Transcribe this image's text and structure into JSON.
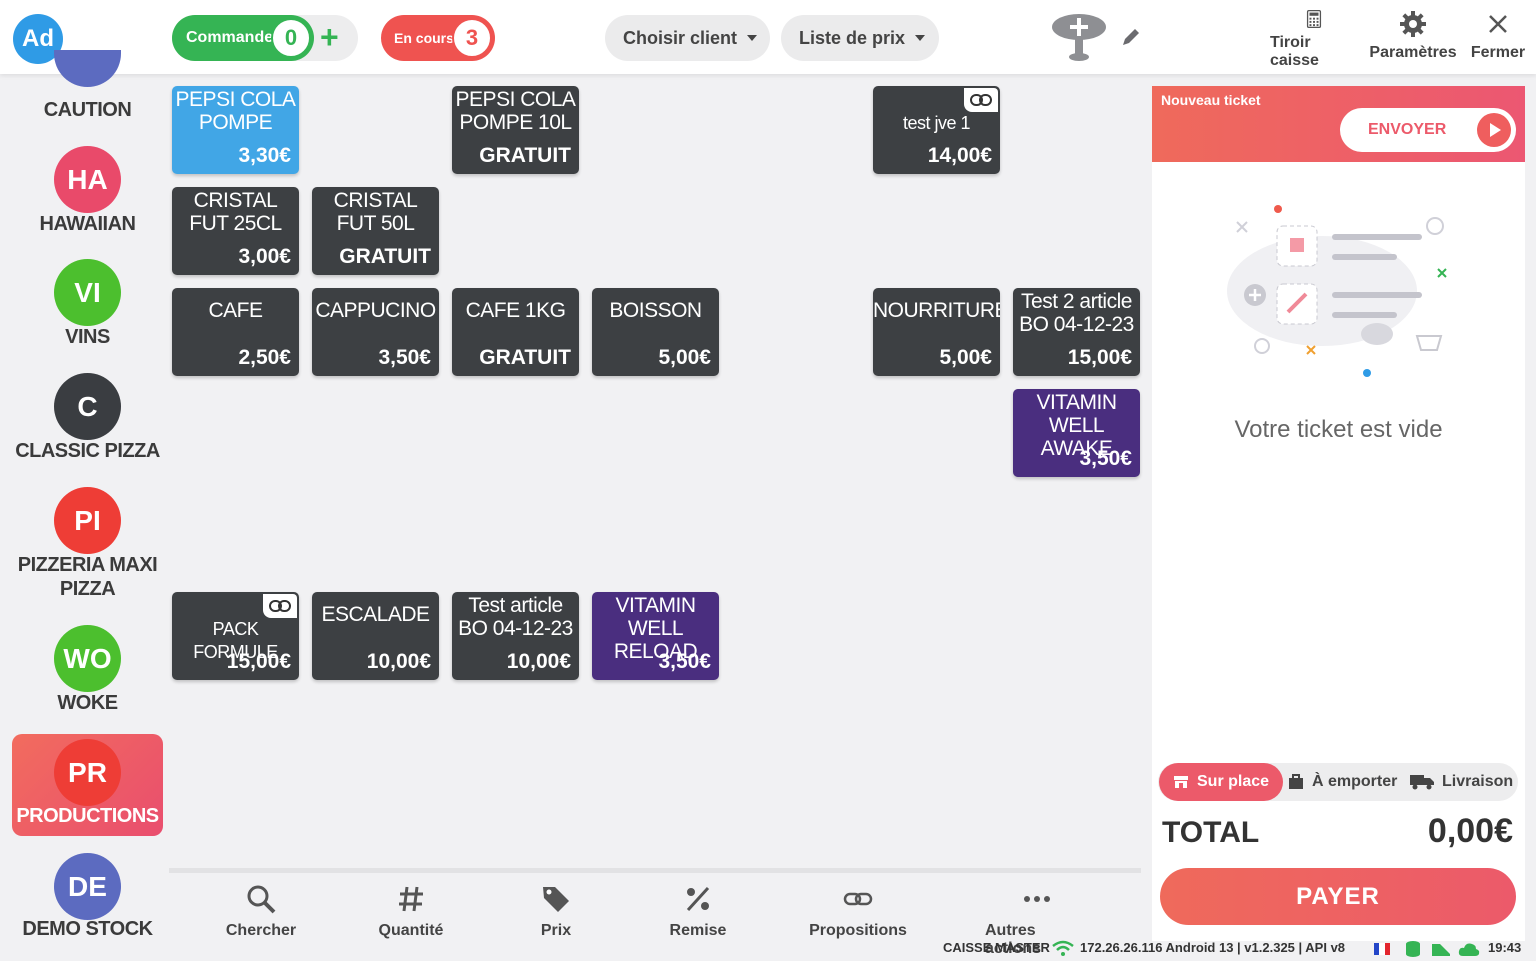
{
  "header": {
    "avatar": "Ad",
    "commandes": {
      "label": "Commandes",
      "count": "0"
    },
    "en_cours": {
      "label": "En cours",
      "count": "3"
    },
    "client_dropdown": "Choisir client",
    "price_list_dropdown": "Liste de prix",
    "tools": {
      "tiroir": "Tiroir caisse",
      "parametres": "Paramètres",
      "fermer": "Fermer"
    }
  },
  "categories": [
    {
      "initials": "",
      "label": "CAUTION",
      "color": "#5c6bc0"
    },
    {
      "initials": "HA",
      "label": "HAWAIIAN",
      "color": "#e94a6a"
    },
    {
      "initials": "VI",
      "label": "VINS",
      "color": "#4cbf2e"
    },
    {
      "initials": "C",
      "label": "CLASSIC PIZZA",
      "color": "#3a3d41"
    },
    {
      "initials": "PI",
      "label": "PIZZERIA MAXI PIZZA",
      "color": "#ee3d36"
    },
    {
      "initials": "WO",
      "label": "WOKE",
      "color": "#4cbf2e"
    },
    {
      "initials": "PR",
      "label": "PRODUCTIONS",
      "color": "#ee3d36"
    },
    {
      "initials": "DE",
      "label": "DEMO STOCK",
      "color": "#5c6bc0"
    }
  ],
  "products": [
    {
      "name": "PEPSI COLA POMPE",
      "price": "3,30€"
    },
    {
      "name": "PEPSI COLA POMPE 10L",
      "price": "GRATUIT"
    },
    {
      "name": "test jve 1",
      "price": "14,00€"
    },
    {
      "name": "CRISTAL FUT 25CL",
      "price": "3,00€"
    },
    {
      "name": "CRISTAL FUT 50L",
      "price": "GRATUIT"
    },
    {
      "name": "CAFE",
      "price": "2,50€"
    },
    {
      "name": "CAPPUCINO",
      "price": "3,50€"
    },
    {
      "name": "CAFE 1KG",
      "price": "GRATUIT"
    },
    {
      "name": "BOISSON",
      "price": "5,00€"
    },
    {
      "name": "NOURRITURE",
      "price": "5,00€"
    },
    {
      "name": "Test 2 article BO 04-12-23",
      "price": "15,00€"
    },
    {
      "name": "VITAMIN WELL AWAKE",
      "price": "3,50€"
    },
    {
      "name": "PACK FORMULE",
      "price": "15,00€"
    },
    {
      "name": "ESCALADE",
      "price": "10,00€"
    },
    {
      "name": "Test article BO 04-12-23",
      "price": "10,00€"
    },
    {
      "name": "VITAMIN WELL RELOAD",
      "price": "3,50€"
    }
  ],
  "toolbar": {
    "chercher": "Chercher",
    "quantite": "Quantité",
    "prix": "Prix",
    "remise": "Remise",
    "propositions": "Propositions",
    "autres": "Autres actions"
  },
  "status": {
    "caisse": "CAISSE MASTER",
    "info": "172.26.26.116 Android 13 | v1.2.325 | API v8",
    "time": "19:43"
  },
  "ticket": {
    "title": "Nouveau ticket",
    "send": "ENVOYER",
    "empty": "Votre ticket est vide",
    "modes": {
      "sur_place": "Sur place",
      "emporter": "À emporter",
      "livraison": "Livraison"
    },
    "total_label": "TOTAL",
    "total_value": "0,00€",
    "pay": "PAYER"
  },
  "colors": {
    "accent": "#ec5a6a",
    "green": "#35b454",
    "tile": "#3d4043",
    "blue_tile": "#41a6e6",
    "purple_tile": "#4a2e7f"
  }
}
